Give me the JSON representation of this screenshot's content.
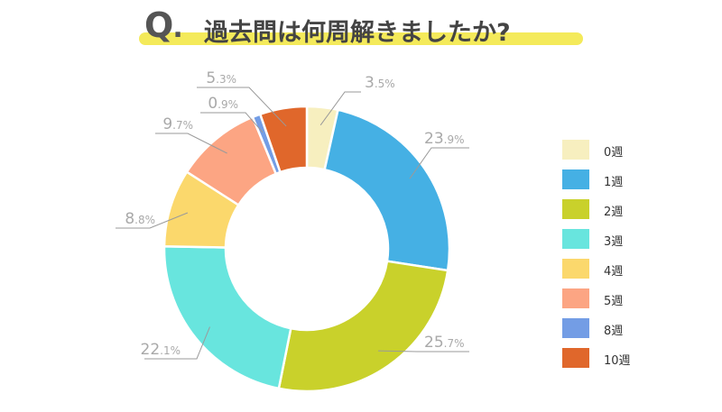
{
  "title": {
    "q_letter": "Q",
    "q_dot": ".",
    "text": "過去問は何周解きましたか?"
  },
  "chart_data": {
    "type": "pie",
    "style": "donut",
    "start": "top, clockwise",
    "legend_position": "right",
    "slices": [
      {
        "label": "0週",
        "value_text": "3.5",
        "value": 3.5,
        "color": "#f7efbf"
      },
      {
        "label": "1週",
        "value_text": "23.9",
        "value": 23.9,
        "color": "#45b0e4"
      },
      {
        "label": "2週",
        "value_text": "25.7",
        "value": 25.7,
        "color": "#c9d12b"
      },
      {
        "label": "3週",
        "value_text": "22.1",
        "value": 22.1,
        "color": "#68e5de"
      },
      {
        "label": "4週",
        "value_text": "8.8",
        "value": 8.8,
        "color": "#fbd86c"
      },
      {
        "label": "5週",
        "value_text": "9.7",
        "value": 9.7,
        "color": "#fca583"
      },
      {
        "label": "8週",
        "value_text": "0.9",
        "value": 0.9,
        "color": "#739de5"
      },
      {
        "label": "10週",
        "value_text": "5.3",
        "value": 5.3,
        "color": "#e0672b"
      }
    ],
    "unit": "%"
  }
}
